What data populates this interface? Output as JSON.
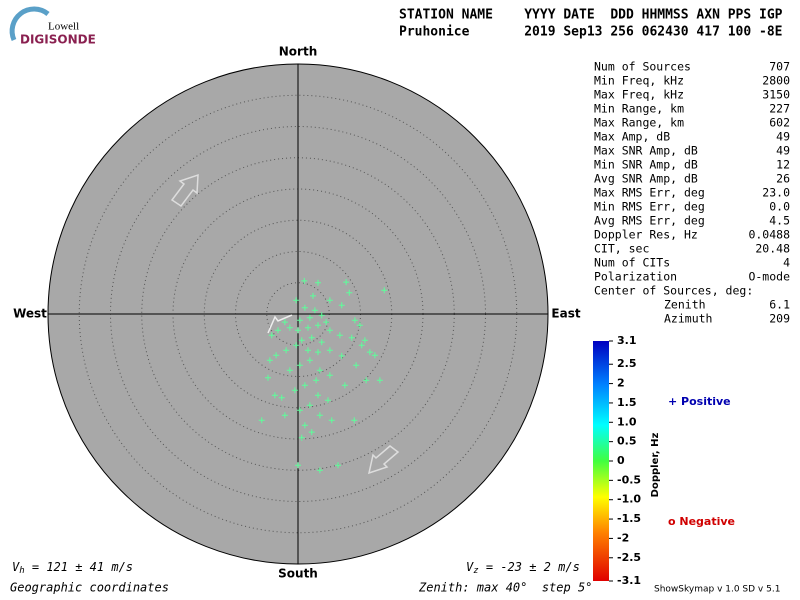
{
  "logo": {
    "top": "Lowell",
    "bottom": "DIGISONDE"
  },
  "header": {
    "columns": "STATION NAME    YYYY DATE  DDD HHMMSS AXN PPS IGP",
    "values": "Pruhonice       2019 Sep13 256 062430 417 100 -8E"
  },
  "compass": {
    "north": "North",
    "south": "South",
    "west": "West",
    "east": "East"
  },
  "stats": [
    [
      "Num of Sources",
      "707"
    ],
    [
      "Min Freq, kHz",
      "2800"
    ],
    [
      "Max Freq, kHz",
      "3150"
    ],
    [
      "Min Range, km",
      "227"
    ],
    [
      "Max Range, km",
      "602"
    ],
    [
      "Max Amp, dB",
      "49"
    ],
    [
      "Max SNR Amp, dB",
      "49"
    ],
    [
      "Min SNR Amp, dB",
      "12"
    ],
    [
      "Avg SNR Amp, dB",
      "26"
    ],
    [
      "Max RMS Err, deg",
      "23.0"
    ],
    [
      "Min RMS Err, deg",
      "0.0"
    ],
    [
      "Avg RMS Err, deg",
      "4.5"
    ],
    [
      "Doppler Res, Hz",
      "0.0488"
    ],
    [
      "CIT, sec",
      "20.48"
    ],
    [
      "Num of CITs",
      "4"
    ],
    [
      "Polarization",
      "O-mode"
    ]
  ],
  "center": {
    "title": "Center of Sources, deg:",
    "rows": [
      [
        "Zenith",
        "6.1"
      ],
      [
        "Azimuth",
        "209"
      ]
    ]
  },
  "colorbar": {
    "label": "Doppler, Hz",
    "lim": [
      -3.1,
      3.1
    ],
    "ticks": [
      3.1,
      2.5,
      2,
      1.5,
      {
        "value": 1,
        "label": "1.0"
      },
      0.5,
      0,
      -0.5,
      {
        "value": -1,
        "label": "-1.0"
      },
      -1.5,
      -2,
      -2.5,
      -3.1
    ]
  },
  "legend": {
    "positive": "+ Positive",
    "negative": "o Negative"
  },
  "footer": {
    "vh_symbol": "V",
    "vh_sub": "h",
    "vh_text": " = 121 ± 41 m/s",
    "vz_symbol": "V",
    "vz_sub": "z",
    "vz_text": " = -23 ± 2 m/s",
    "coords": "Geographic coordinates",
    "zenith": "Zenith: max 40°  step 5°",
    "version": "ShowSkymap v 1.0  SD v 5.1"
  },
  "sources": {
    "color": "#5cff9a",
    "zenith_max": 40,
    "east": [
      1.0,
      3.2,
      7.7,
      8.2,
      13.8,
      2.4,
      -0.3,
      5.1,
      7.0,
      9.1,
      1.1,
      2.7,
      3.8,
      1.9,
      0.3,
      4.5,
      3.2,
      1.6,
      0,
      -1.3,
      -2.1,
      -3.2,
      -4.2,
      5.1,
      6.7,
      8.6,
      10.2,
      11.5,
      12.3,
      2.2,
      0.6,
      3.8,
      -0.3,
      -1.9,
      -3.5,
      -4.5,
      -4.8,
      1.6,
      3.2,
      5.1,
      7.0,
      9.3,
      10.9,
      13.1,
      1.9,
      0.3,
      -1.3,
      3.5,
      5.1,
      7.5,
      2.9,
      1.1,
      -0.5,
      -2.6,
      -3.7,
      3.2,
      4.8,
      1.9,
      0.3,
      -2.1,
      -5.8,
      3.5,
      5.4,
      9.0,
      1.1,
      2.2,
      0.6,
      0,
      3.5,
      6.4,
      9.9,
      10.7
    ],
    "north": [
      5.3,
      5.0,
      5.1,
      3.4,
      3.8,
      2.9,
      2.2,
      2.2,
      1.4,
      -1.0,
      1.0,
      0.6,
      -0.2,
      -0.6,
      -1.0,
      -1.3,
      -1.8,
      -2.2,
      -2.6,
      -2.2,
      -1.3,
      -2.6,
      -3.4,
      -2.6,
      -3.4,
      -3.8,
      -5.0,
      -6.1,
      -6.6,
      -3.8,
      -4.2,
      -4.5,
      -5.0,
      -5.8,
      -6.6,
      -7.4,
      -10.2,
      -5.8,
      -6.1,
      -5.8,
      -6.7,
      -8.2,
      -10.6,
      -10.6,
      -7.4,
      -8.2,
      -9.0,
      -9.0,
      -9.8,
      -11.4,
      -10.6,
      -11.4,
      -12.2,
      -13.4,
      -13.0,
      -13.0,
      -13.8,
      -14.6,
      -15.4,
      -16.2,
      -17.0,
      -16.2,
      -17.0,
      -17.0,
      -17.8,
      -18.9,
      -19.8,
      -24.2,
      -25.0,
      -24.2,
      -1.8,
      -4.2
    ]
  }
}
